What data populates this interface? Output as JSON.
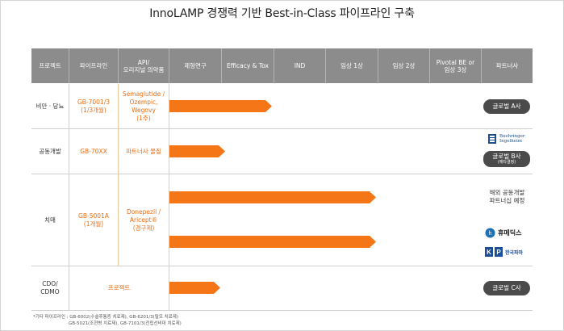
{
  "title": "InnoLAMP 경쟁력 기반 Best-in-Class 파이프라인 구축",
  "header": {
    "project": "프로젝트",
    "pipeline": "파이프라인",
    "api_line1": "API/",
    "api_line2": "오리지널 의약품",
    "formulation": "제형연구",
    "efficacy": "Efficacy & Tox",
    "ind": "IND",
    "phase1": "임상 1상",
    "phase2": "임상 2상",
    "pivotal_line1": "Pivotal BE or",
    "pivotal_line2": "임상 3상",
    "partner": "파트너사"
  },
  "rows": [
    {
      "project": "비만 · 당뇨",
      "pipeline_line1": "GB-7001/3",
      "pipeline_line2": "(1/3개월)",
      "api_lines": [
        "Semaglutide /",
        "Ozempic,",
        "Wegovy",
        "(1주)"
      ],
      "progress": "Efficacy & Tox",
      "partner_pill": "글로벌 A사"
    },
    {
      "project": "공동개발",
      "pipeline_line1": "GB-70XX",
      "api_lines": [
        "파트너사 물질"
      ],
      "progress": "Efficacy & Tox (partial)",
      "partner_logo_line1": "Boehringer",
      "partner_logo_line2": "Ingelheim",
      "partner_pill": "글로벌 B사",
      "partner_pill_sub": "(예타결정)"
    },
    {
      "project": "치매",
      "pipeline_line1": "GB-5001A",
      "pipeline_line2": "(1개월)",
      "api_lines": [
        "Donepezil /",
        "Aricept®",
        "(경구제)"
      ],
      "progress_tracks": [
        "임상 2상",
        "임상 2상"
      ],
      "partner_text_line1": "해외 공동개발",
      "partner_text_line2": "파트너십 예정",
      "partner_logo_1": "휴메딕스",
      "partner_logo_2": "한국파마"
    },
    {
      "project_line1": "CDO/",
      "project_line2": "CDMO",
      "pipeline_merged": "프로젝트",
      "progress": "제형연구",
      "partner_pill": "글로벌 C사"
    }
  ],
  "footnote_line1": "*기타 파이프라인 : GB-6002(수술후통증 치료제), GB-6201/3(탈모 치료제)",
  "footnote_line2": "GB-5021(조현병 치료제), GB-7101/3(전립선비대 치료제)",
  "colors": {
    "accent": "#f47616",
    "header_bg": "#8c8c8c",
    "pill_bg": "#4b4b4b",
    "text_orange": "#ef6d10"
  }
}
